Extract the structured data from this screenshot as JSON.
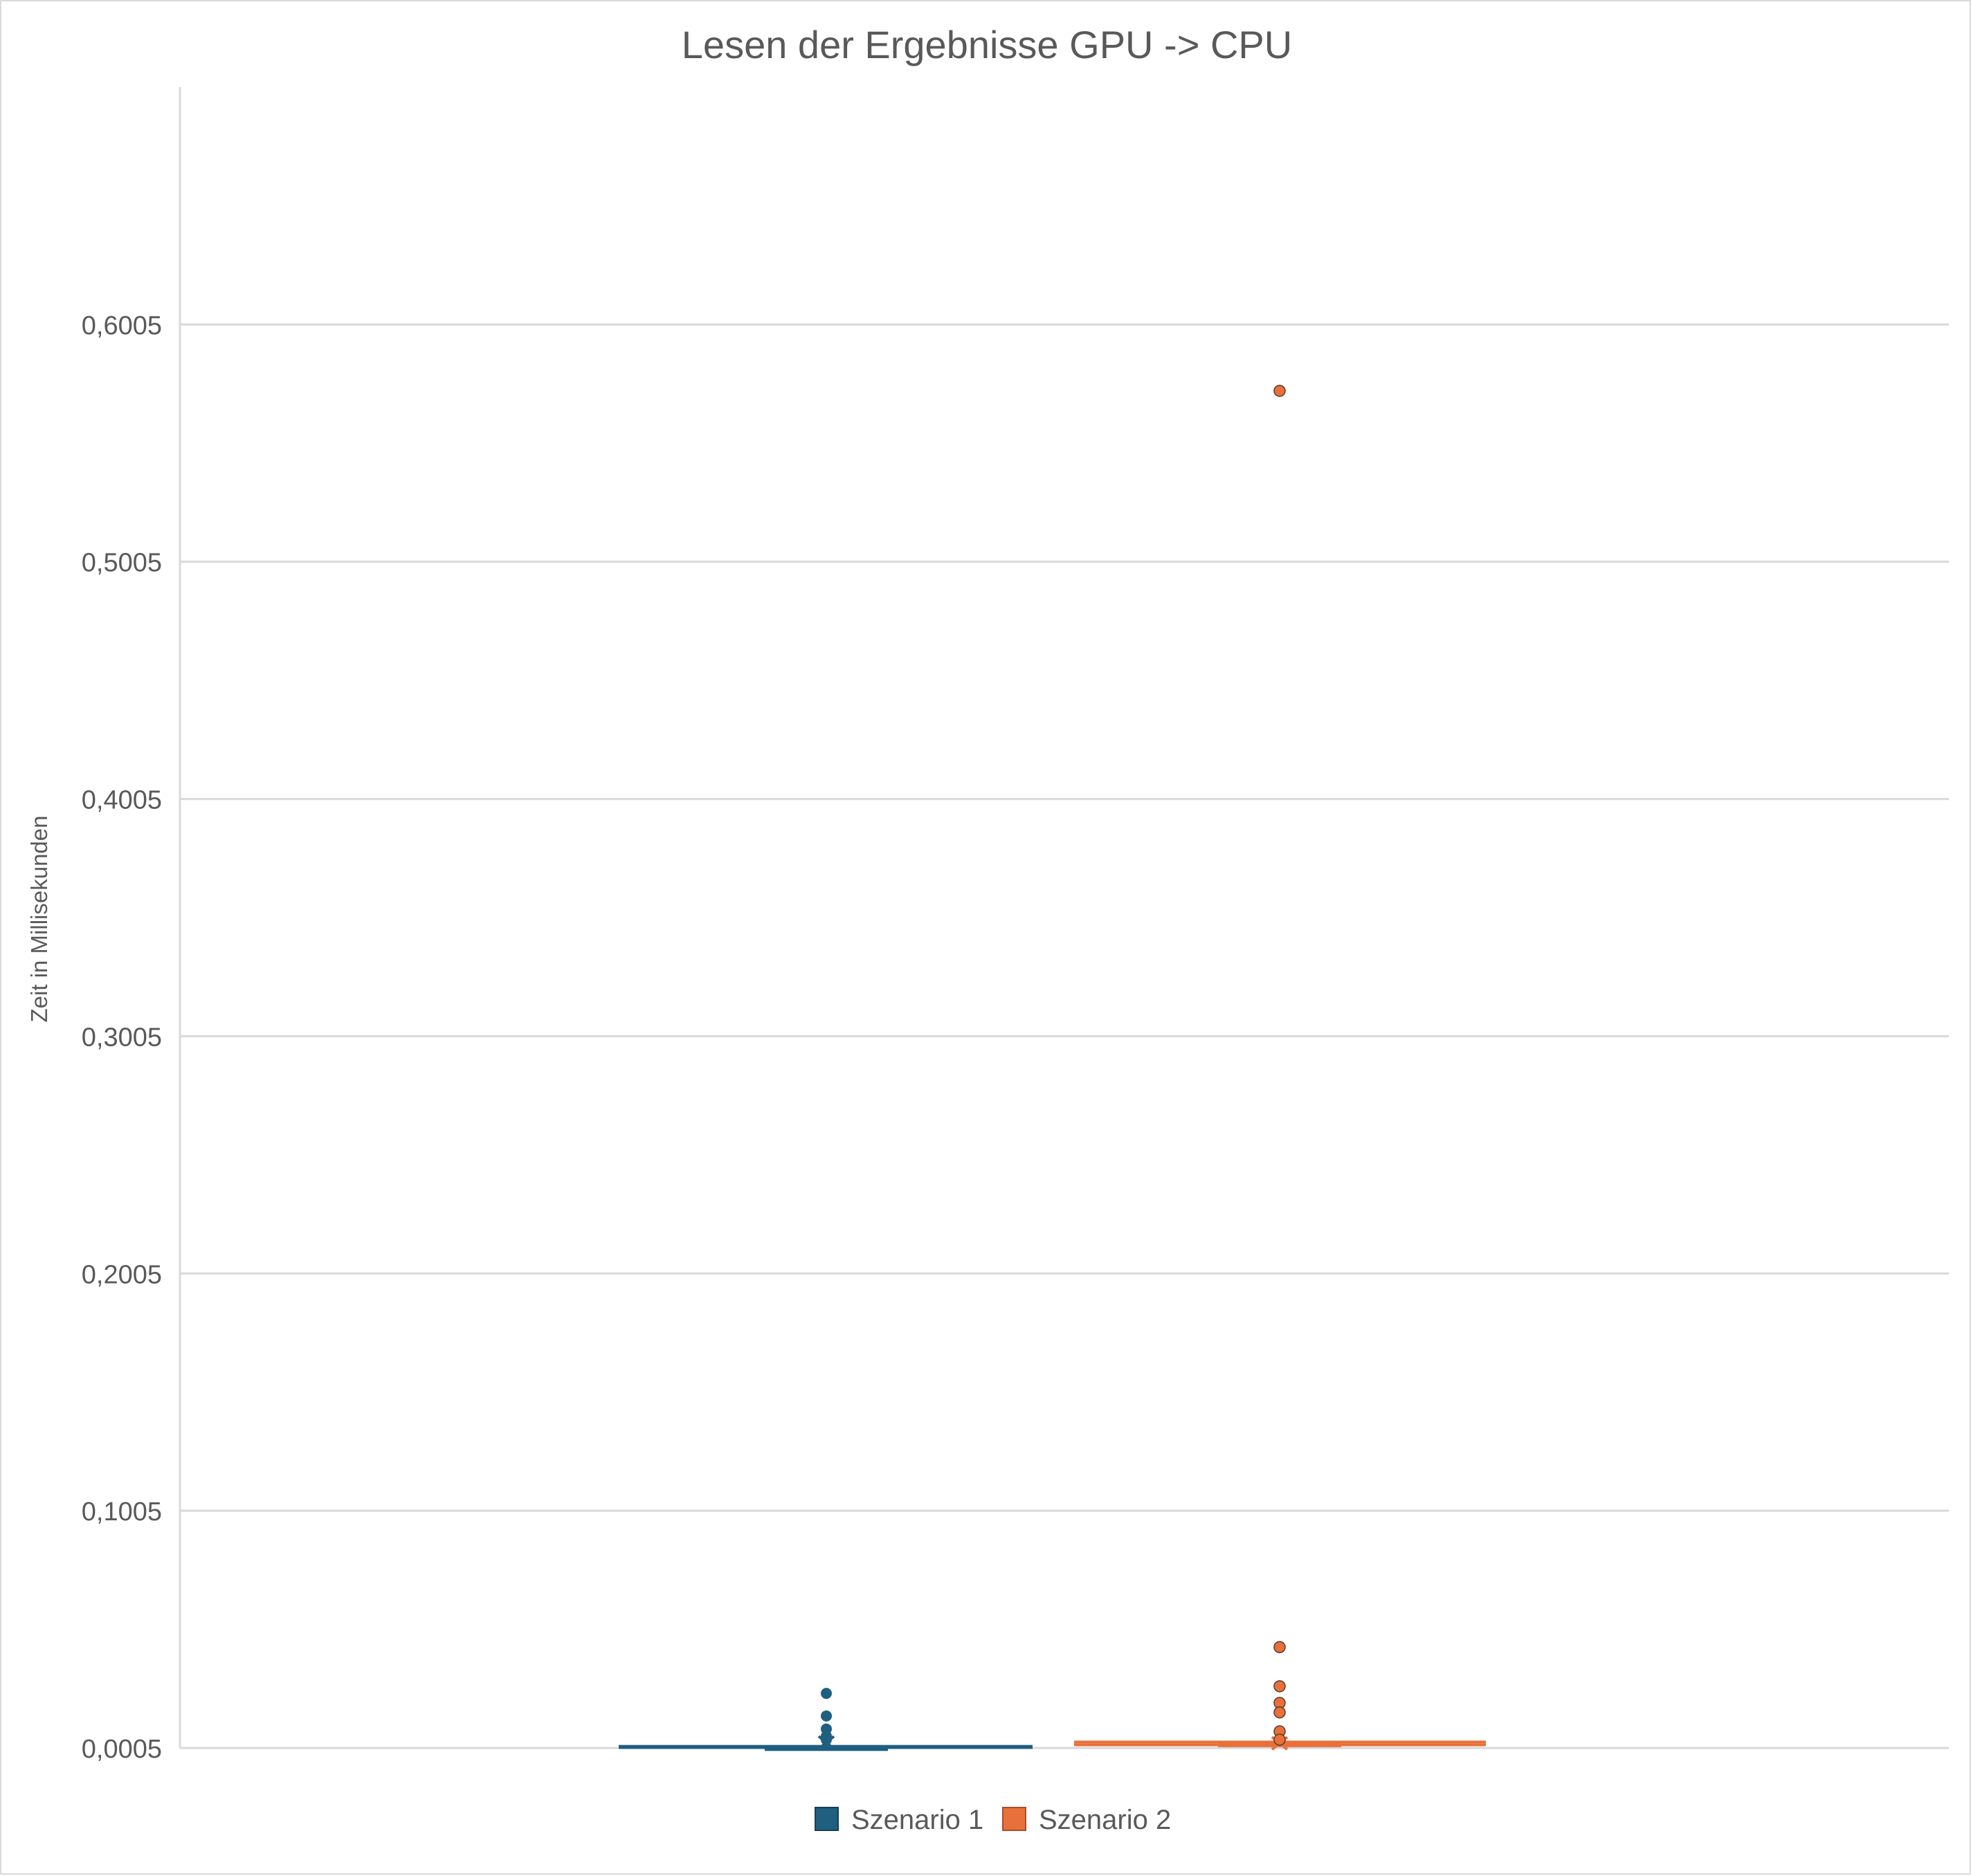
{
  "chart_data": {
    "type": "box",
    "title": "Lesen der Ergebnisse GPU -> CPU",
    "xlabel": "",
    "ylabel": "Zeit in Millisekunden",
    "ylim": [
      0.0005,
      0.7005
    ],
    "yticks": [
      "0,0005",
      "0,1005",
      "0,2005",
      "0,3005",
      "0,4005",
      "0,5005",
      "0,6005"
    ],
    "ytick_values": [
      0.0005,
      0.1005,
      0.2005,
      0.3005,
      0.4005,
      0.5005,
      0.6005
    ],
    "grid": true,
    "legend_position": "bottom",
    "series": [
      {
        "name": "Szenario 1",
        "color": "#1f5f7f",
        "whisker_low": 0.0007,
        "q1": 0.0008,
        "median": 0.0009,
        "q3": 0.001,
        "whisker_high": 0.0012,
        "mean": 0.0028,
        "outliers": [
          0.0235,
          0.014,
          0.0085,
          0.0055,
          0.004
        ]
      },
      {
        "name": "Szenario 2",
        "color": "#e8703a",
        "whisker_low": 0.0018,
        "q1": 0.0021,
        "median": 0.0023,
        "q3": 0.0026,
        "whisker_high": 0.003,
        "mean": 0.0025,
        "outliers": [
          0.5725,
          0.043,
          0.0265,
          0.0195,
          0.0155,
          0.0075,
          0.004
        ]
      }
    ]
  }
}
